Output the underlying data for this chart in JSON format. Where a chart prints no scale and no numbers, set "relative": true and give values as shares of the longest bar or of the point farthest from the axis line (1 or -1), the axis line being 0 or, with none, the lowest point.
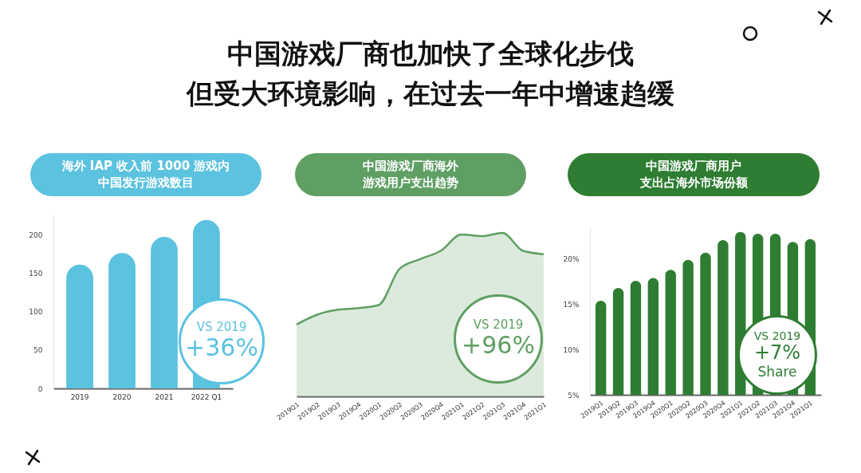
{
  "chart_data": [
    {
      "type": "other",
      "title": "中国游戏厂商也加快了全球化步伐",
      "subtitle": "但受大环境影响，在过去一年中增速趋缓"
    },
    {
      "type": "bar",
      "title": "海外 IAP 收入前 1000 游戏内",
      "subtitle": "中国发行游戏数目",
      "categories": [
        "2019",
        "2020",
        "2021",
        "2022 Q1"
      ],
      "values": [
        161,
        176,
        197,
        219
      ],
      "color": "#5bc2df",
      "ylim": [
        0,
        225
      ],
      "yticks": [
        0,
        50,
        100,
        150,
        200
      ],
      "annotations": [
        "VS 2019",
        "+36%"
      ]
    },
    {
      "type": "area",
      "title": "中国游戏厂商海外",
      "subtitle": "游戏用户支出趋势",
      "relative": true,
      "categories": [
        "2019Q1",
        "2019Q2",
        "2019Q3",
        "2019Q4",
        "2020Q1",
        "2020Q2",
        "2020Q3",
        "2020Q4",
        "2021Q1",
        "2021Q2",
        "2021Q3",
        "2021Q4",
        "2021Q1"
      ],
      "values": [
        0.44,
        0.5,
        0.53,
        0.54,
        0.56,
        0.78,
        0.84,
        0.89,
        0.99,
        0.98,
        1,
        0.89,
        0.87
      ],
      "color": "#5f9f63",
      "annotations": [
        "VS 2019",
        "+96%"
      ]
    },
    {
      "type": "bar",
      "title": "中国游戏厂商用户",
      "subtitle": "支出占海外市场份额",
      "categories": [
        "2019Q1",
        "2019Q2",
        "2019Q3",
        "2019Q4",
        "2020Q1",
        "2020Q2",
        "2020Q3",
        "2020Q4",
        "2021Q1",
        "2021Q2",
        "2021Q3",
        "2021Q4",
        "2021Q1"
      ],
      "values": [
        15.4,
        16.8,
        17.6,
        17.9,
        18.8,
        19.9,
        20.7,
        22.1,
        23.0,
        22.8,
        22.8,
        21.9,
        22.2
      ],
      "color": "#2e7d32",
      "ylim": [
        5,
        23.5
      ],
      "yticks": [
        {
          "value": 5,
          "label": "5%"
        },
        {
          "value": 10,
          "label": "10%"
        },
        {
          "value": 15,
          "label": "15%"
        },
        {
          "value": 20,
          "label": "20%"
        }
      ],
      "annotations": [
        "VS 2019",
        "+7%",
        "Share"
      ]
    }
  ]
}
